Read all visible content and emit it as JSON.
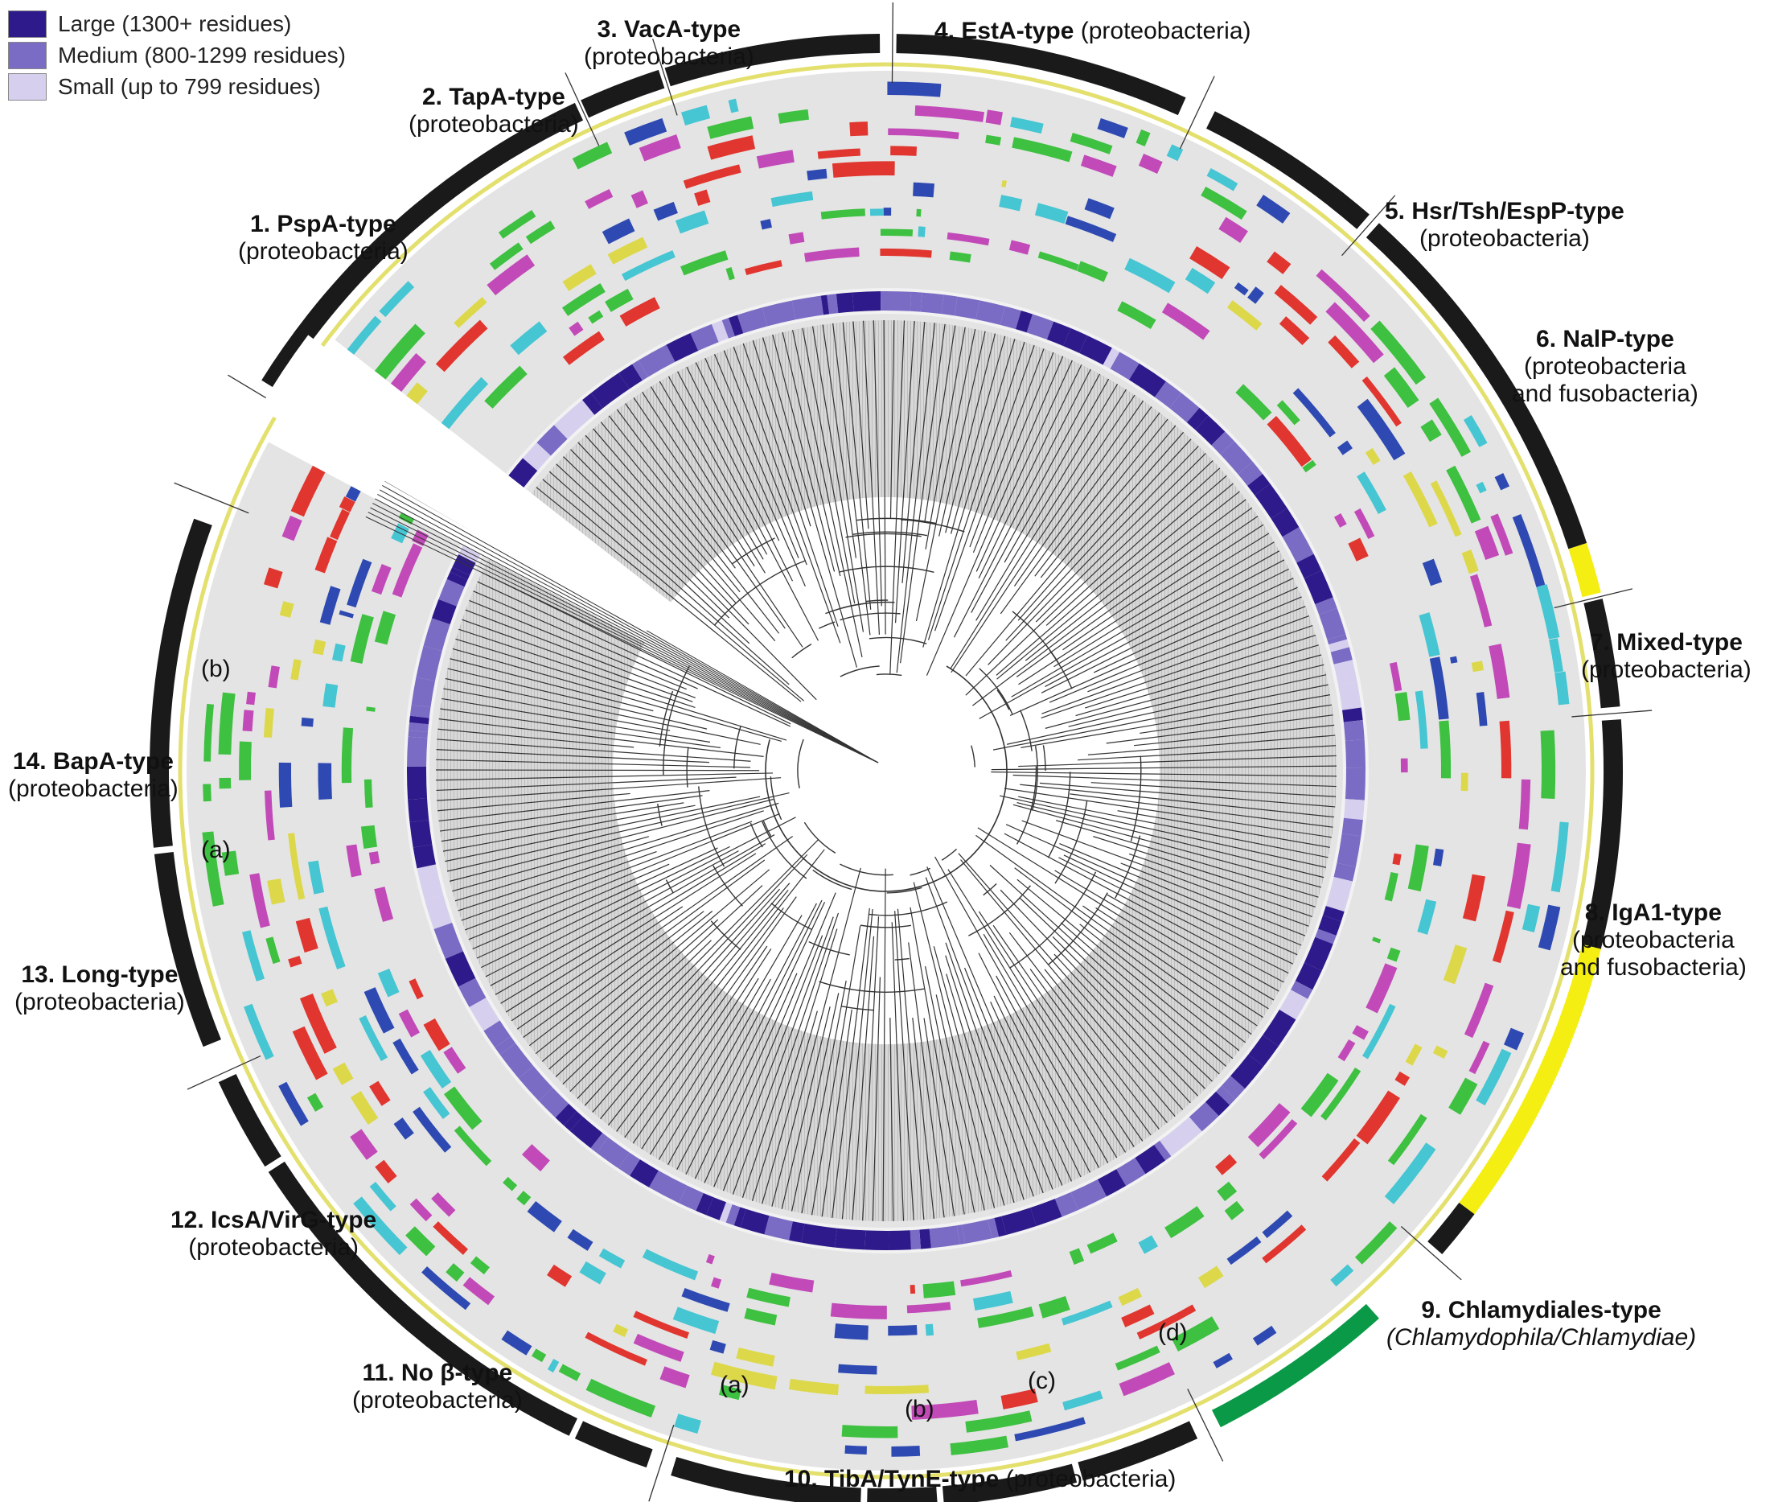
{
  "legend": [
    {
      "label": "Large (1300+ residues)",
      "color": "#2e1a8a"
    },
    {
      "label": "Medium (800-1299 residues)",
      "color": "#7a6cc4"
    },
    {
      "label": "Small (up to 799 residues)",
      "color": "#d6d0ee"
    }
  ],
  "colors": {
    "ring": "#1a1a1a",
    "mixed_ring": "#f5ee12",
    "chlamydiales_ring": "#0a9a47",
    "domain_palette": [
      "#e0362f",
      "#c24ab8",
      "#3ec041",
      "#46c5d2",
      "#2e4ab2",
      "#dcd84a"
    ],
    "tree": "#333333"
  },
  "clades": [
    {
      "id": "c1",
      "name": "1. PspA-type",
      "taxa": "(proteobacteria)"
    },
    {
      "id": "c2",
      "name": "2. TapA-type",
      "taxa": "(proteobacteria)"
    },
    {
      "id": "c3",
      "name": "3. VacA-type",
      "taxa": "(proteobacteria)"
    },
    {
      "id": "c4",
      "name": "4. EstA-type",
      "taxa": "(proteobacteria)"
    },
    {
      "id": "c5",
      "name": "5. Hsr/Tsh/EspP-type",
      "taxa": "(proteobacteria)"
    },
    {
      "id": "c6",
      "name": "6. NalP-type",
      "taxa_line1": "(proteobacteria",
      "taxa_line2": "and fusobacteria)"
    },
    {
      "id": "c7",
      "name": "7. Mixed-type",
      "taxa": "(proteobacteria)"
    },
    {
      "id": "c8",
      "name": "8. IgA1-type",
      "taxa_line1": "(proteobacteria",
      "taxa_line2": "and fusobacteria)"
    },
    {
      "id": "c9",
      "name": "9. Chlamydiales-type",
      "taxa": "(Chlamydophila/Chlamydiae)"
    },
    {
      "id": "c10",
      "name": "10. TibA/TynE-type",
      "taxa": "(proteobacteria)"
    },
    {
      "id": "c11",
      "name": "11. No β-type",
      "taxa": "(proteobacteria)"
    },
    {
      "id": "c12",
      "name": "12. IcsA/VirG-type",
      "taxa": "(proteobacteria)"
    },
    {
      "id": "c13",
      "name": "13. Long-type",
      "taxa": "(proteobacteria)"
    },
    {
      "id": "c14",
      "name": "14. BapA-type",
      "taxa": "(proteobacteria)"
    }
  ],
  "subclades": [
    {
      "id": "s14b",
      "label": "(b)"
    },
    {
      "id": "s14a",
      "label": "(a)"
    },
    {
      "id": "s10a",
      "label": "(a)"
    },
    {
      "id": "s10b",
      "label": "(b)"
    },
    {
      "id": "s10c",
      "label": "(c)"
    },
    {
      "id": "s10d",
      "label": "(d)"
    }
  ]
}
